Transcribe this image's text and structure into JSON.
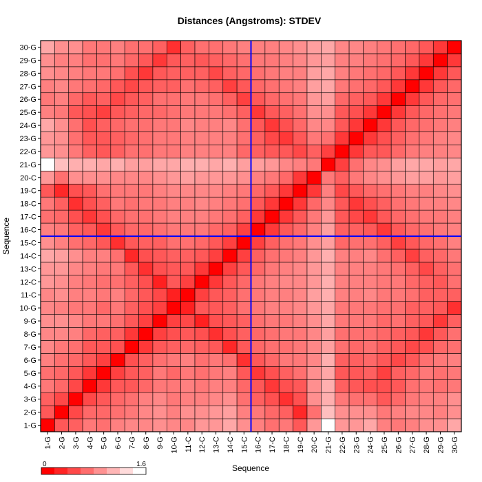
{
  "chart_data": {
    "type": "heatmap",
    "title": "Distances (Angstroms):  STDEV",
    "xlabel": "Sequence",
    "ylabel": "Sequence",
    "labels": [
      "1-G",
      "2-G",
      "3-G",
      "4-G",
      "5-G",
      "6-G",
      "7-G",
      "8-G",
      "9-G",
      "10-G",
      "11-C",
      "12-C",
      "13-C",
      "14-C",
      "15-C",
      "16-C",
      "17-C",
      "18-C",
      "19-C",
      "20-C",
      "21-G",
      "22-G",
      "23-G",
      "24-G",
      "25-G",
      "26-G",
      "27-G",
      "28-G",
      "29-G",
      "30-G"
    ],
    "value_range": [
      0,
      1.6
    ],
    "color_scale": {
      "low": "#ff0000",
      "high": "#ffffff"
    },
    "scale_min_label": "0",
    "scale_max_label": "1.6",
    "crosshair": {
      "row": "15-C",
      "col": "15-C",
      "color": "#0000ff"
    },
    "grid": true,
    "values": [
      [
        0.0,
        0.55,
        0.6,
        0.75,
        0.7,
        0.8,
        0.85,
        0.85,
        0.9,
        0.85,
        0.85,
        0.95,
        0.95,
        1.05,
        0.9,
        0.8,
        0.7,
        0.75,
        0.55,
        0.95,
        1.6,
        0.95,
        0.95,
        1.05,
        0.8,
        0.75,
        0.8,
        0.9,
        0.9,
        1.05
      ],
      [
        0.55,
        0.0,
        0.45,
        0.65,
        0.65,
        0.7,
        0.75,
        0.85,
        0.9,
        0.8,
        0.9,
        0.9,
        0.95,
        1.0,
        0.8,
        0.75,
        0.65,
        0.6,
        0.25,
        0.7,
        1.2,
        0.9,
        0.9,
        0.9,
        0.75,
        0.8,
        0.85,
        0.85,
        0.8,
        0.9
      ],
      [
        0.6,
        0.45,
        0.0,
        0.45,
        0.55,
        0.65,
        0.7,
        0.8,
        0.85,
        0.75,
        0.8,
        0.8,
        0.85,
        0.9,
        0.7,
        0.6,
        0.5,
        0.3,
        0.5,
        0.9,
        1.1,
        0.75,
        0.7,
        0.7,
        0.55,
        0.65,
        0.75,
        0.8,
        0.8,
        0.9
      ],
      [
        0.75,
        0.65,
        0.45,
        0.0,
        0.35,
        0.55,
        0.55,
        0.65,
        0.75,
        0.75,
        0.8,
        0.75,
        0.8,
        0.8,
        0.65,
        0.55,
        0.35,
        0.5,
        0.55,
        0.9,
        1.1,
        0.6,
        0.55,
        0.5,
        0.5,
        0.55,
        0.7,
        0.75,
        0.7,
        0.75
      ],
      [
        0.7,
        0.65,
        0.55,
        0.35,
        0.0,
        0.4,
        0.55,
        0.6,
        0.75,
        0.65,
        0.75,
        0.7,
        0.75,
        0.8,
        0.55,
        0.35,
        0.5,
        0.6,
        0.7,
        0.9,
        1.05,
        0.55,
        0.55,
        0.6,
        0.4,
        0.6,
        0.65,
        0.75,
        0.7,
        0.75
      ],
      [
        0.8,
        0.7,
        0.65,
        0.55,
        0.4,
        0.0,
        0.5,
        0.6,
        0.7,
        0.75,
        0.8,
        0.7,
        0.75,
        0.7,
        0.3,
        0.55,
        0.65,
        0.75,
        0.75,
        0.85,
        1.1,
        0.6,
        0.6,
        0.65,
        0.55,
        0.45,
        0.55,
        0.7,
        0.75,
        0.8
      ],
      [
        0.85,
        0.75,
        0.7,
        0.55,
        0.55,
        0.5,
        0.0,
        0.35,
        0.55,
        0.6,
        0.65,
        0.6,
        0.55,
        0.25,
        0.55,
        0.65,
        0.7,
        0.7,
        0.75,
        0.85,
        1.0,
        0.7,
        0.65,
        0.7,
        0.6,
        0.55,
        0.45,
        0.5,
        0.65,
        0.7
      ],
      [
        0.85,
        0.85,
        0.8,
        0.65,
        0.6,
        0.6,
        0.35,
        0.0,
        0.4,
        0.5,
        0.55,
        0.5,
        0.3,
        0.5,
        0.6,
        0.65,
        0.7,
        0.75,
        0.75,
        0.85,
        1.0,
        0.7,
        0.7,
        0.7,
        0.65,
        0.6,
        0.55,
        0.35,
        0.55,
        0.7
      ],
      [
        0.9,
        0.9,
        0.85,
        0.75,
        0.75,
        0.7,
        0.55,
        0.4,
        0.0,
        0.4,
        0.45,
        0.2,
        0.5,
        0.55,
        0.6,
        0.7,
        0.75,
        0.75,
        0.8,
        0.9,
        1.05,
        0.75,
        0.75,
        0.75,
        0.65,
        0.7,
        0.6,
        0.55,
        0.35,
        0.6
      ],
      [
        0.85,
        0.8,
        0.75,
        0.75,
        0.65,
        0.75,
        0.6,
        0.5,
        0.4,
        0.0,
        0.2,
        0.55,
        0.55,
        0.6,
        0.7,
        0.75,
        0.8,
        0.8,
        0.85,
        0.95,
        1.05,
        0.75,
        0.75,
        0.75,
        0.7,
        0.7,
        0.6,
        0.6,
        0.55,
        0.3
      ],
      [
        0.85,
        0.9,
        0.8,
        0.8,
        0.75,
        0.8,
        0.65,
        0.55,
        0.45,
        0.2,
        0.0,
        0.4,
        0.55,
        0.6,
        0.7,
        0.75,
        0.8,
        0.8,
        0.85,
        1.0,
        1.1,
        0.8,
        0.8,
        0.85,
        0.75,
        0.75,
        0.7,
        0.6,
        0.6,
        0.6
      ],
      [
        0.95,
        0.9,
        0.8,
        0.75,
        0.7,
        0.7,
        0.6,
        0.5,
        0.2,
        0.55,
        0.4,
        0.0,
        0.35,
        0.55,
        0.65,
        0.75,
        0.8,
        0.85,
        0.85,
        0.95,
        1.1,
        0.8,
        0.8,
        0.8,
        0.75,
        0.75,
        0.65,
        0.6,
        0.55,
        0.7
      ],
      [
        0.95,
        0.95,
        0.85,
        0.8,
        0.75,
        0.75,
        0.55,
        0.3,
        0.5,
        0.55,
        0.55,
        0.35,
        0.0,
        0.4,
        0.55,
        0.65,
        0.75,
        0.8,
        0.85,
        0.95,
        1.05,
        0.8,
        0.8,
        0.8,
        0.75,
        0.7,
        0.6,
        0.45,
        0.6,
        0.7
      ],
      [
        1.05,
        1.0,
        0.9,
        0.8,
        0.8,
        0.7,
        0.25,
        0.5,
        0.55,
        0.6,
        0.6,
        0.55,
        0.4,
        0.0,
        0.4,
        0.6,
        0.7,
        0.75,
        0.8,
        0.95,
        1.1,
        0.8,
        0.8,
        0.85,
        0.7,
        0.6,
        0.4,
        0.6,
        0.65,
        0.75
      ],
      [
        0.9,
        0.8,
        0.7,
        0.65,
        0.55,
        0.3,
        0.55,
        0.6,
        0.6,
        0.7,
        0.7,
        0.65,
        0.55,
        0.4,
        0.0,
        0.4,
        0.6,
        0.7,
        0.75,
        0.9,
        1.0,
        0.65,
        0.7,
        0.7,
        0.6,
        0.4,
        0.55,
        0.65,
        0.7,
        0.8
      ],
      [
        0.8,
        0.75,
        0.6,
        0.55,
        0.35,
        0.55,
        0.65,
        0.65,
        0.7,
        0.75,
        0.75,
        0.75,
        0.65,
        0.6,
        0.4,
        0.0,
        0.35,
        0.55,
        0.65,
        0.8,
        1.0,
        0.6,
        0.6,
        0.55,
        0.35,
        0.55,
        0.65,
        0.7,
        0.75,
        0.8
      ],
      [
        0.7,
        0.65,
        0.5,
        0.35,
        0.5,
        0.65,
        0.7,
        0.7,
        0.75,
        0.8,
        0.8,
        0.8,
        0.75,
        0.7,
        0.6,
        0.35,
        0.0,
        0.35,
        0.55,
        0.75,
        0.95,
        0.55,
        0.45,
        0.35,
        0.55,
        0.65,
        0.7,
        0.75,
        0.75,
        0.8
      ],
      [
        0.75,
        0.6,
        0.3,
        0.5,
        0.6,
        0.75,
        0.7,
        0.75,
        0.75,
        0.8,
        0.8,
        0.85,
        0.8,
        0.75,
        0.7,
        0.55,
        0.35,
        0.0,
        0.35,
        0.65,
        0.85,
        0.55,
        0.35,
        0.5,
        0.6,
        0.7,
        0.75,
        0.8,
        0.8,
        0.85
      ],
      [
        0.55,
        0.25,
        0.5,
        0.55,
        0.7,
        0.75,
        0.75,
        0.75,
        0.8,
        0.85,
        0.85,
        0.85,
        0.85,
        0.8,
        0.75,
        0.65,
        0.55,
        0.35,
        0.0,
        0.35,
        0.8,
        0.45,
        0.55,
        0.65,
        0.7,
        0.75,
        0.8,
        0.8,
        0.85,
        0.9
      ],
      [
        0.95,
        0.7,
        0.9,
        0.9,
        0.9,
        0.85,
        0.85,
        0.85,
        0.9,
        0.95,
        1.0,
        0.95,
        0.95,
        0.95,
        0.9,
        0.8,
        0.75,
        0.65,
        0.35,
        0.0,
        0.75,
        0.6,
        0.75,
        0.85,
        0.9,
        0.95,
        1.0,
        1.0,
        0.95,
        1.0
      ],
      [
        1.6,
        1.2,
        1.1,
        1.1,
        1.05,
        1.1,
        1.0,
        1.0,
        1.05,
        1.05,
        1.1,
        1.1,
        1.05,
        1.1,
        1.0,
        1.0,
        0.95,
        0.85,
        0.8,
        0.75,
        0.0,
        0.4,
        0.7,
        0.85,
        0.9,
        1.0,
        1.05,
        1.05,
        1.0,
        1.05
      ],
      [
        0.95,
        0.9,
        0.75,
        0.6,
        0.55,
        0.6,
        0.7,
        0.7,
        0.75,
        0.75,
        0.8,
        0.8,
        0.8,
        0.8,
        0.65,
        0.6,
        0.55,
        0.55,
        0.45,
        0.6,
        0.4,
        0.0,
        0.35,
        0.55,
        0.55,
        0.65,
        0.75,
        0.8,
        0.8,
        0.85
      ],
      [
        0.95,
        0.9,
        0.7,
        0.55,
        0.55,
        0.6,
        0.65,
        0.7,
        0.75,
        0.75,
        0.8,
        0.8,
        0.8,
        0.8,
        0.7,
        0.6,
        0.45,
        0.35,
        0.55,
        0.75,
        0.7,
        0.35,
        0.0,
        0.35,
        0.5,
        0.6,
        0.7,
        0.75,
        0.8,
        0.85
      ],
      [
        1.05,
        0.9,
        0.7,
        0.5,
        0.6,
        0.65,
        0.7,
        0.7,
        0.75,
        0.75,
        0.85,
        0.8,
        0.8,
        0.85,
        0.7,
        0.55,
        0.35,
        0.5,
        0.65,
        0.85,
        0.85,
        0.55,
        0.35,
        0.0,
        0.35,
        0.55,
        0.65,
        0.7,
        0.75,
        0.8
      ],
      [
        0.8,
        0.75,
        0.55,
        0.5,
        0.4,
        0.55,
        0.6,
        0.65,
        0.65,
        0.7,
        0.75,
        0.75,
        0.75,
        0.7,
        0.6,
        0.35,
        0.55,
        0.6,
        0.7,
        0.9,
        0.9,
        0.55,
        0.5,
        0.35,
        0.0,
        0.35,
        0.55,
        0.65,
        0.7,
        0.75
      ],
      [
        0.75,
        0.8,
        0.65,
        0.55,
        0.6,
        0.45,
        0.55,
        0.6,
        0.7,
        0.7,
        0.75,
        0.75,
        0.7,
        0.6,
        0.4,
        0.55,
        0.65,
        0.7,
        0.75,
        0.95,
        1.0,
        0.65,
        0.6,
        0.55,
        0.35,
        0.0,
        0.35,
        0.55,
        0.65,
        0.7
      ],
      [
        0.8,
        0.85,
        0.75,
        0.7,
        0.65,
        0.55,
        0.45,
        0.55,
        0.6,
        0.6,
        0.7,
        0.65,
        0.6,
        0.4,
        0.55,
        0.65,
        0.7,
        0.75,
        0.8,
        1.0,
        1.05,
        0.75,
        0.7,
        0.65,
        0.55,
        0.35,
        0.0,
        0.35,
        0.55,
        0.65
      ],
      [
        0.9,
        0.85,
        0.8,
        0.75,
        0.75,
        0.7,
        0.5,
        0.35,
        0.55,
        0.6,
        0.6,
        0.6,
        0.45,
        0.6,
        0.65,
        0.7,
        0.75,
        0.8,
        0.8,
        1.0,
        1.05,
        0.8,
        0.75,
        0.7,
        0.65,
        0.55,
        0.35,
        0.0,
        0.35,
        0.55
      ],
      [
        0.9,
        0.8,
        0.8,
        0.7,
        0.7,
        0.75,
        0.65,
        0.55,
        0.35,
        0.55,
        0.6,
        0.55,
        0.6,
        0.65,
        0.7,
        0.75,
        0.75,
        0.8,
        0.85,
        0.95,
        1.0,
        0.8,
        0.8,
        0.75,
        0.7,
        0.65,
        0.55,
        0.35,
        0.0,
        0.35
      ],
      [
        1.05,
        0.9,
        0.9,
        0.75,
        0.75,
        0.8,
        0.7,
        0.7,
        0.6,
        0.3,
        0.6,
        0.7,
        0.7,
        0.75,
        0.8,
        0.8,
        0.8,
        0.85,
        0.9,
        1.0,
        1.05,
        0.85,
        0.85,
        0.8,
        0.75,
        0.7,
        0.65,
        0.55,
        0.35,
        0.0
      ]
    ]
  }
}
